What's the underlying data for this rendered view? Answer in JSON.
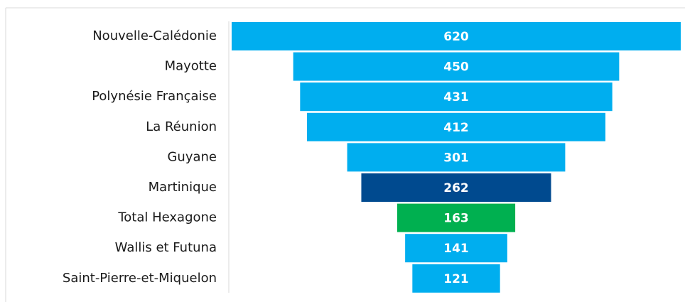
{
  "chart_data": {
    "type": "funnel",
    "categories": [
      "Nouvelle-Calédonie",
      "Mayotte",
      "Polynésie Française",
      "La Réunion",
      "Guyane",
      "Martinique",
      "Total Hexagone",
      "Wallis et Futuna",
      "Saint-Pierre-et-Miquelon"
    ],
    "values": [
      620,
      450,
      431,
      412,
      301,
      262,
      163,
      141,
      121
    ],
    "colors": [
      "#00aeef",
      "#00aeef",
      "#00aeef",
      "#00aeef",
      "#00aeef",
      "#004a8f",
      "#00b050",
      "#00aeef",
      "#00aeef"
    ]
  }
}
